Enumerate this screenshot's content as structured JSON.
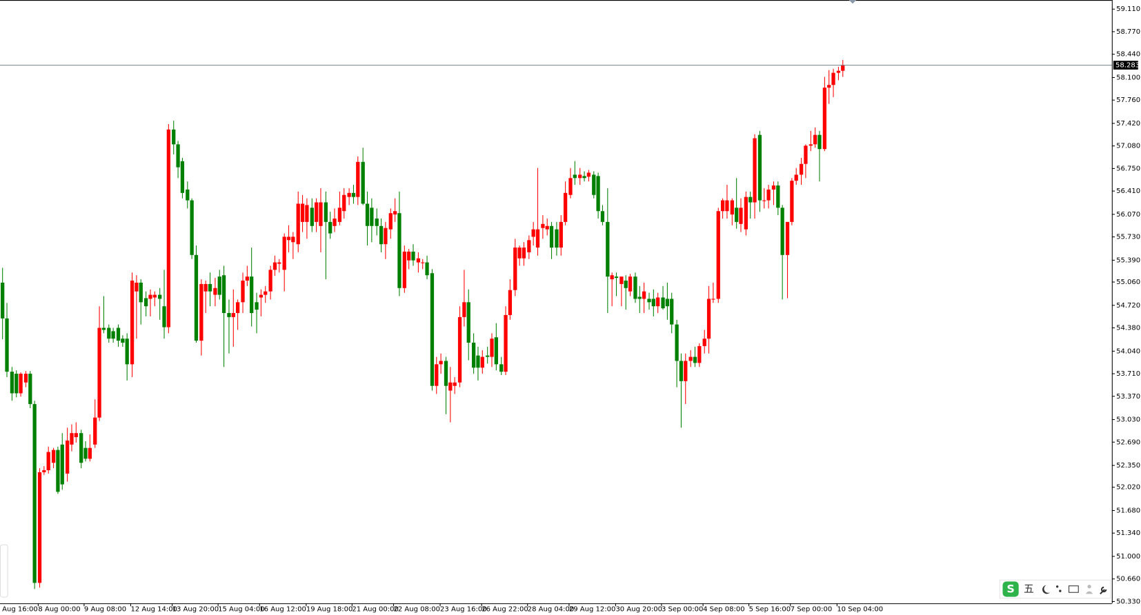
{
  "chart_data": {
    "type": "candlestick",
    "up_color": "#ff0000",
    "down_color": "#008000",
    "ylim": [
      50.297,
      59.239
    ],
    "yticks": [
      {
        "value": 59.11,
        "label": "59.110"
      },
      {
        "value": 58.77,
        "label": "58.770"
      },
      {
        "value": 58.44,
        "label": "58.440"
      },
      {
        "value": 58.1,
        "label": "58.100"
      },
      {
        "value": 57.76,
        "label": "57.760"
      },
      {
        "value": 57.42,
        "label": "57.420"
      },
      {
        "value": 57.08,
        "label": "57.080"
      },
      {
        "value": 56.75,
        "label": "56.750"
      },
      {
        "value": 56.41,
        "label": "56.410"
      },
      {
        "value": 56.07,
        "label": "56.070"
      },
      {
        "value": 55.73,
        "label": "55.730"
      },
      {
        "value": 55.39,
        "label": "55.390"
      },
      {
        "value": 55.06,
        "label": "55.060"
      },
      {
        "value": 54.72,
        "label": "54.720"
      },
      {
        "value": 54.38,
        "label": "54.380"
      },
      {
        "value": 54.04,
        "label": "54.040"
      },
      {
        "value": 53.71,
        "label": "53.710"
      },
      {
        "value": 53.37,
        "label": "53.370"
      },
      {
        "value": 53.03,
        "label": "53.030"
      },
      {
        "value": 52.69,
        "label": "52.690"
      },
      {
        "value": 52.35,
        "label": "52.350"
      },
      {
        "value": 52.02,
        "label": "52.020"
      },
      {
        "value": 51.68,
        "label": "51.680"
      },
      {
        "value": 51.34,
        "label": "51.340"
      },
      {
        "value": 51.0,
        "label": "51.000"
      },
      {
        "value": 50.66,
        "label": "50.660"
      },
      {
        "value": 50.33,
        "label": "50.330"
      }
    ],
    "current_price": {
      "value": 58.283,
      "label": "58.283"
    },
    "categories": [
      "Aug 16:00",
      null,
      null,
      null,
      null,
      null,
      null,
      null,
      null,
      "8 Aug 00:00",
      null,
      null,
      null,
      null,
      null,
      null,
      null,
      null,
      null,
      "9 Aug 08:00",
      null,
      null,
      null,
      null,
      null,
      null,
      null,
      null,
      null,
      "12 Aug 14:00",
      null,
      null,
      null,
      null,
      null,
      null,
      null,
      null,
      "13 Aug 20:00",
      null,
      null,
      null,
      null,
      null,
      null,
      null,
      null,
      null,
      "15 Aug 04:00",
      null,
      null,
      null,
      null,
      null,
      null,
      null,
      null,
      "16 Aug 12:00",
      null,
      null,
      null,
      null,
      null,
      null,
      null,
      null,
      null,
      "19 Aug 18:00",
      null,
      null,
      null,
      null,
      null,
      null,
      null,
      null,
      null,
      "21 Aug 00:00",
      null,
      null,
      null,
      null,
      null,
      null,
      null,
      null,
      "22 Aug 08:00",
      null,
      null,
      null,
      null,
      null,
      null,
      null,
      null,
      null,
      "23 Aug 16:00",
      null,
      null,
      null,
      null,
      null,
      null,
      null,
      null,
      "26 Aug 22:00",
      null,
      null,
      null,
      null,
      null,
      null,
      null,
      null,
      null,
      "28 Aug 04:00",
      null,
      null,
      null,
      null,
      null,
      null,
      null,
      null,
      "29 Aug 12:00",
      null,
      null,
      null,
      null,
      null,
      null,
      null,
      null,
      null,
      "30 Aug 20:00",
      null,
      null,
      null,
      null,
      null,
      null,
      null,
      null,
      null,
      "3 Sep 00:00",
      null,
      null,
      null,
      null,
      null,
      null,
      null,
      null,
      "4 Sep 08:00",
      null,
      null,
      null,
      null,
      null,
      null,
      null,
      null,
      null,
      "5 Sep 16:00",
      null,
      null,
      null,
      null,
      null,
      null,
      null,
      null,
      "7 Sep 00:00",
      null,
      null,
      null,
      null,
      null,
      null,
      null,
      null,
      null,
      "10 Sep 04:00"
    ],
    "candles": [
      [
        55.05,
        55.27,
        54.21,
        54.52
      ],
      [
        54.52,
        54.75,
        53.65,
        53.73
      ],
      [
        53.73,
        53.8,
        53.3,
        53.41
      ],
      [
        53.7,
        53.75,
        53.35,
        53.41
      ],
      [
        53.41,
        53.72,
        53.36,
        53.7
      ],
      [
        53.57,
        53.74,
        53.5,
        53.7
      ],
      [
        53.7,
        53.74,
        53.19,
        53.25
      ],
      [
        53.25,
        53.3,
        50.51,
        50.6
      ],
      [
        50.6,
        52.3,
        50.53,
        52.24
      ],
      [
        52.24,
        52.33,
        52.2,
        52.27
      ],
      [
        52.27,
        52.62,
        52.22,
        52.54
      ],
      [
        52.38,
        52.6,
        52.3,
        52.57
      ],
      [
        52.57,
        52.62,
        51.92,
        51.95
      ],
      [
        52.65,
        52.82,
        51.98,
        52.06
      ],
      [
        52.22,
        52.9,
        52.1,
        52.71
      ],
      [
        52.65,
        52.95,
        52.55,
        52.82
      ],
      [
        52.76,
        52.98,
        52.68,
        52.82
      ],
      [
        52.82,
        52.87,
        52.3,
        52.38
      ],
      [
        52.6,
        52.7,
        52.4,
        52.44
      ],
      [
        52.44,
        52.8,
        52.4,
        52.6
      ],
      [
        52.65,
        53.32,
        52.6,
        53.05
      ],
      [
        53.05,
        54.7,
        53.0,
        54.38
      ],
      [
        54.38,
        54.85,
        54.3,
        54.35
      ],
      [
        54.38,
        54.43,
        54.16,
        54.22
      ],
      [
        54.33,
        54.38,
        54.16,
        54.22
      ],
      [
        54.38,
        54.43,
        54.1,
        54.19
      ],
      [
        54.22,
        54.27,
        54.1,
        54.16
      ],
      [
        54.22,
        54.3,
        53.6,
        53.84
      ],
      [
        53.84,
        55.2,
        53.65,
        55.08
      ],
      [
        54.92,
        55.16,
        54.22,
        55.05
      ],
      [
        55.05,
        55.1,
        54.43,
        54.76
      ],
      [
        54.82,
        54.92,
        54.55,
        54.7
      ],
      [
        54.81,
        54.95,
        54.55,
        54.87
      ],
      [
        54.83,
        54.92,
        54.7,
        54.87
      ],
      [
        54.87,
        54.97,
        54.5,
        54.81
      ],
      [
        54.7,
        55.24,
        54.22,
        54.39
      ],
      [
        54.39,
        57.4,
        54.3,
        57.32
      ],
      [
        57.32,
        57.45,
        56.95,
        57.1
      ],
      [
        57.1,
        57.15,
        56.6,
        56.76
      ],
      [
        56.85,
        56.9,
        56.3,
        56.38
      ],
      [
        56.43,
        56.55,
        56.15,
        56.27
      ],
      [
        56.27,
        56.3,
        55.4,
        55.46
      ],
      [
        55.46,
        55.6,
        54.16,
        54.19
      ],
      [
        54.19,
        55.1,
        53.97,
        55.03
      ],
      [
        54.92,
        55.08,
        54.6,
        55.03
      ],
      [
        55.03,
        55.2,
        54.7,
        54.92
      ],
      [
        54.87,
        55.12,
        54.7,
        54.97
      ],
      [
        55.14,
        55.24,
        54.8,
        54.87
      ],
      [
        55.16,
        55.3,
        53.8,
        54.6
      ],
      [
        54.6,
        54.8,
        54.0,
        54.54
      ],
      [
        54.54,
        54.95,
        54.1,
        54.6
      ],
      [
        54.6,
        54.8,
        54.35,
        54.76
      ],
      [
        54.76,
        55.2,
        54.6,
        55.08
      ],
      [
        55.08,
        55.3,
        55.0,
        55.14
      ],
      [
        55.14,
        55.57,
        54.4,
        54.6
      ],
      [
        54.76,
        54.9,
        54.3,
        54.65
      ],
      [
        54.83,
        54.95,
        54.55,
        54.87
      ],
      [
        54.87,
        55.0,
        54.75,
        54.92
      ],
      [
        54.92,
        55.3,
        54.8,
        55.24
      ],
      [
        55.24,
        55.45,
        55.15,
        55.35
      ],
      [
        55.33,
        55.4,
        55.2,
        55.35
      ],
      [
        55.24,
        55.78,
        54.92,
        55.73
      ],
      [
        55.68,
        55.9,
        55.5,
        55.73
      ],
      [
        55.65,
        55.8,
        55.4,
        55.73
      ],
      [
        55.62,
        56.4,
        55.5,
        56.22
      ],
      [
        55.95,
        56.35,
        55.8,
        56.22
      ],
      [
        55.95,
        56.3,
        55.7,
        56.2
      ],
      [
        56.16,
        56.3,
        55.8,
        55.89
      ],
      [
        55.95,
        56.3,
        55.8,
        56.24
      ],
      [
        55.89,
        56.45,
        55.5,
        56.24
      ],
      [
        56.24,
        56.4,
        55.1,
        55.95
      ],
      [
        55.95,
        56.1,
        55.7,
        55.78
      ],
      [
        55.89,
        56.15,
        55.8,
        56.0
      ],
      [
        55.95,
        56.4,
        55.9,
        56.16
      ],
      [
        56.11,
        56.45,
        56.0,
        56.35
      ],
      [
        56.32,
        56.45,
        56.2,
        56.38
      ],
      [
        56.38,
        56.5,
        56.22,
        56.32
      ],
      [
        56.32,
        56.92,
        56.2,
        56.84
      ],
      [
        56.84,
        57.05,
        56.2,
        56.22
      ],
      [
        56.22,
        56.4,
        55.6,
        55.89
      ],
      [
        56.16,
        56.3,
        55.65,
        55.89
      ],
      [
        56.0,
        56.15,
        55.75,
        55.89
      ],
      [
        55.89,
        56.0,
        55.5,
        55.62
      ],
      [
        55.62,
        55.95,
        55.4,
        55.86
      ],
      [
        55.84,
        56.15,
        55.7,
        56.08
      ],
      [
        56.06,
        56.3,
        55.95,
        56.11
      ],
      [
        56.08,
        56.4,
        54.85,
        54.97
      ],
      [
        54.97,
        55.6,
        54.9,
        55.51
      ],
      [
        55.38,
        55.55,
        55.25,
        55.51
      ],
      [
        55.51,
        55.62,
        55.3,
        55.38
      ],
      [
        55.35,
        55.5,
        55.2,
        55.41
      ],
      [
        55.35,
        55.4,
        55.25,
        55.35
      ],
      [
        55.35,
        55.45,
        55.1,
        55.16
      ],
      [
        55.19,
        55.25,
        53.45,
        53.52
      ],
      [
        53.52,
        53.95,
        53.4,
        53.84
      ],
      [
        53.84,
        54.0,
        53.7,
        53.89
      ],
      [
        53.89,
        53.95,
        53.1,
        53.52
      ],
      [
        53.45,
        53.8,
        52.98,
        53.57
      ],
      [
        53.52,
        53.65,
        53.4,
        53.57
      ],
      [
        53.57,
        54.7,
        53.5,
        54.54
      ],
      [
        54.54,
        55.24,
        54.4,
        54.76
      ],
      [
        54.76,
        54.95,
        53.9,
        54.16
      ],
      [
        54.16,
        54.3,
        53.7,
        53.79
      ],
      [
        53.97,
        54.1,
        53.6,
        53.79
      ],
      [
        53.79,
        54.05,
        53.7,
        53.95
      ],
      [
        53.97,
        54.1,
        53.85,
        53.95
      ],
      [
        53.95,
        54.3,
        53.8,
        54.22
      ],
      [
        54.24,
        54.45,
        53.75,
        53.84
      ],
      [
        53.84,
        53.95,
        53.68,
        53.73
      ],
      [
        53.73,
        54.7,
        53.68,
        54.57
      ],
      [
        54.57,
        55.1,
        54.5,
        54.94
      ],
      [
        54.94,
        55.7,
        54.85,
        55.57
      ],
      [
        55.41,
        55.6,
        55.3,
        55.57
      ],
      [
        55.41,
        55.65,
        55.3,
        55.57
      ],
      [
        55.5,
        55.75,
        55.4,
        55.68
      ],
      [
        55.73,
        55.95,
        55.6,
        55.84
      ],
      [
        55.57,
        56.75,
        55.45,
        55.84
      ],
      [
        55.86,
        56.05,
        55.7,
        55.92
      ],
      [
        55.84,
        56.0,
        55.75,
        55.89
      ],
      [
        55.89,
        55.95,
        55.4,
        55.57
      ],
      [
        55.84,
        55.95,
        55.45,
        55.57
      ],
      [
        55.57,
        56.05,
        55.45,
        55.95
      ],
      [
        55.95,
        56.55,
        55.9,
        56.38
      ],
      [
        56.35,
        56.75,
        56.3,
        56.6
      ],
      [
        56.65,
        56.85,
        56.5,
        56.6
      ],
      [
        56.6,
        56.75,
        56.5,
        56.65
      ],
      [
        56.63,
        56.7,
        56.55,
        56.6
      ],
      [
        56.62,
        56.72,
        56.55,
        56.68
      ],
      [
        56.65,
        56.7,
        56.3,
        56.35
      ],
      [
        56.63,
        56.68,
        56.0,
        56.11
      ],
      [
        56.11,
        56.2,
        55.9,
        55.95
      ],
      [
        55.95,
        56.45,
        54.6,
        55.14
      ],
      [
        55.1,
        55.2,
        54.7,
        55.16
      ],
      [
        55.14,
        55.2,
        54.85,
        55.12
      ],
      [
        55.03,
        55.14,
        54.7,
        55.14
      ],
      [
        55.08,
        55.16,
        54.65,
        54.97
      ],
      [
        54.92,
        55.18,
        54.85,
        55.14
      ],
      [
        55.14,
        55.2,
        54.75,
        54.81
      ],
      [
        54.84,
        55.0,
        54.6,
        54.81
      ],
      [
        54.81,
        55.05,
        54.6,
        54.92
      ],
      [
        54.81,
        54.9,
        54.65,
        54.76
      ],
      [
        54.81,
        54.95,
        54.55,
        54.7
      ],
      [
        54.7,
        54.9,
        54.6,
        54.83
      ],
      [
        54.83,
        55.0,
        54.65,
        54.67
      ],
      [
        54.81,
        55.05,
        54.5,
        54.7
      ],
      [
        54.81,
        54.9,
        54.3,
        54.43
      ],
      [
        54.43,
        54.5,
        53.5,
        53.89
      ],
      [
        53.89,
        54.0,
        52.9,
        53.59
      ],
      [
        53.59,
        54.0,
        53.25,
        53.89
      ],
      [
        53.89,
        54.05,
        53.8,
        53.95
      ],
      [
        53.95,
        54.1,
        53.8,
        53.86
      ],
      [
        53.86,
        54.15,
        53.8,
        54.11
      ],
      [
        54.11,
        54.35,
        54.0,
        54.22
      ],
      [
        54.22,
        55.0,
        54.0,
        54.81
      ],
      [
        54.81,
        55.05,
        54.75,
        54.81
      ],
      [
        54.81,
        56.16,
        54.75,
        56.11
      ],
      [
        56.11,
        56.3,
        56.0,
        56.27
      ],
      [
        56.11,
        56.5,
        56.0,
        56.27
      ],
      [
        56.06,
        56.3,
        55.9,
        56.27
      ],
      [
        56.16,
        56.6,
        55.85,
        55.95
      ],
      [
        55.92,
        56.3,
        55.8,
        56.16
      ],
      [
        55.84,
        56.4,
        55.75,
        56.32
      ],
      [
        56.32,
        56.4,
        56.0,
        56.24
      ],
      [
        56.24,
        57.25,
        56.0,
        57.19
      ],
      [
        57.24,
        57.3,
        56.1,
        56.27
      ],
      [
        56.27,
        56.45,
        56.15,
        56.27
      ],
      [
        56.27,
        56.5,
        56.15,
        56.43
      ],
      [
        56.43,
        56.55,
        56.2,
        56.49
      ],
      [
        56.49,
        56.55,
        56.05,
        56.16
      ],
      [
        56.16,
        56.2,
        54.8,
        55.46
      ],
      [
        55.46,
        55.95,
        54.82,
        55.95
      ],
      [
        55.95,
        56.6,
        55.9,
        56.56
      ],
      [
        56.56,
        56.75,
        56.5,
        56.65
      ],
      [
        56.65,
        56.9,
        56.5,
        56.81
      ],
      [
        56.81,
        57.1,
        56.6,
        57.08
      ],
      [
        57.08,
        57.3,
        57.0,
        57.1
      ],
      [
        57.1,
        57.35,
        57.05,
        57.24
      ],
      [
        57.24,
        57.3,
        56.55,
        57.03
      ],
      [
        57.03,
        58.1,
        57.0,
        57.94
      ],
      [
        57.94,
        58.2,
        57.7,
        57.98
      ],
      [
        57.98,
        58.22,
        57.8,
        58.16
      ],
      [
        58.16,
        58.25,
        58.05,
        58.19
      ],
      [
        58.19,
        58.35,
        58.1,
        58.28
      ]
    ]
  },
  "ime_toolbar": {
    "text": "五"
  }
}
